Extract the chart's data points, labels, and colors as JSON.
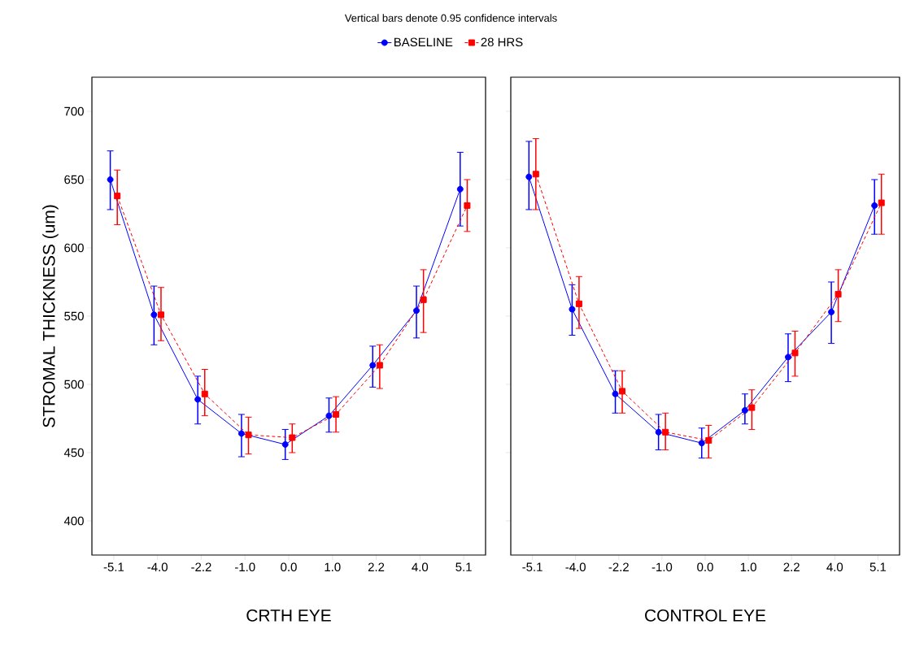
{
  "chart_data": [
    {
      "type": "line",
      "xlabel": "CRTH EYE",
      "ylabel": "STROMAL THICKNESS (um)",
      "annotations": [
        "Vertical bars denote 0.95 confidence intervals"
      ],
      "categories": [
        "-5.1",
        "-4.0",
        "-2.2",
        "-1.0",
        "0.0",
        "1.0",
        "2.2",
        "4.0",
        "5.1"
      ],
      "ylim": [
        375,
        725
      ],
      "yticks": [
        400,
        450,
        500,
        550,
        600,
        650,
        700
      ],
      "legend": "top",
      "grid": false,
      "series": [
        {
          "name": "BASELINE",
          "color": "#0000ff",
          "marker": "circle",
          "line_style": "solid",
          "values": [
            650,
            551,
            489,
            464,
            456,
            477,
            514,
            554,
            643
          ],
          "errors": [
            [
              628,
              671
            ],
            [
              529,
              572
            ],
            [
              471,
              506
            ],
            [
              447,
              478
            ],
            [
              445,
              467
            ],
            [
              465,
              490
            ],
            [
              498,
              528
            ],
            [
              534,
              572
            ],
            [
              616,
              670
            ]
          ]
        },
        {
          "name": "28 HRS",
          "color": "#ff0000",
          "marker": "square",
          "line_style": "dashed",
          "values": [
            638,
            551,
            493,
            463,
            461,
            478,
            514,
            562,
            631
          ],
          "errors": [
            [
              617,
              657
            ],
            [
              532,
              571
            ],
            [
              477,
              511
            ],
            [
              449,
              476
            ],
            [
              450,
              471
            ],
            [
              465,
              491
            ],
            [
              497,
              529
            ],
            [
              538,
              584
            ],
            [
              612,
              650
            ]
          ]
        }
      ]
    },
    {
      "type": "line",
      "xlabel": "CONTROL EYE",
      "tick_labels": "x",
      "categories": [
        "-5.1",
        "-4.0",
        "-2.2",
        "-1.0",
        "0.0",
        "1.0",
        "2.2",
        "4.0",
        "5.1"
      ],
      "ylim": [
        375,
        725
      ],
      "yticks": [
        400,
        450,
        500,
        550,
        600,
        650,
        700
      ],
      "grid": false,
      "series": [
        {
          "color": "#0000ff",
          "marker": "circle",
          "line_style": "solid",
          "values": [
            652,
            555,
            493,
            465,
            457,
            481,
            520,
            553,
            631
          ],
          "errors": [
            [
              628,
              678
            ],
            [
              536,
              573
            ],
            [
              479,
              510
            ],
            [
              452,
              478
            ],
            [
              446,
              468
            ],
            [
              471,
              493
            ],
            [
              502,
              537
            ],
            [
              530,
              575
            ],
            [
              610,
              650
            ]
          ]
        },
        {
          "color": "#ff0000",
          "marker": "square",
          "line_style": "dashed",
          "values": [
            654,
            559,
            495,
            465,
            459,
            483,
            523,
            566,
            633
          ],
          "errors": [
            [
              628,
              680
            ],
            [
              541,
              579
            ],
            [
              479,
              510
            ],
            [
              452,
              479
            ],
            [
              446,
              470
            ],
            [
              467,
              496
            ],
            [
              506,
              539
            ],
            [
              546,
              584
            ],
            [
              610,
              654
            ]
          ]
        }
      ]
    }
  ]
}
